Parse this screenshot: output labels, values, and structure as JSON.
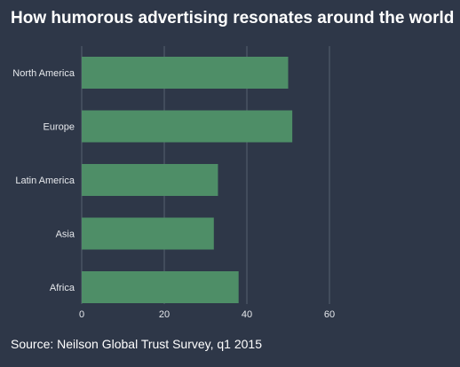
{
  "colors": {
    "background": "#2e3748",
    "bar": "#4e8e67",
    "grid": "#56606f",
    "text": "#ffffff"
  },
  "chart_data": {
    "type": "bar",
    "orientation": "horizontal",
    "title": "How humorous advertising resonates around the world",
    "source": "Source: Neilson Global Trust Survey, q1 2015",
    "categories": [
      "North America",
      "Europe",
      "Latin America",
      "Asia",
      "Africa"
    ],
    "values": [
      50,
      51,
      33,
      32,
      38
    ],
    "xlim": [
      0,
      60
    ],
    "xticks": [
      "0",
      "20",
      "40",
      "60"
    ],
    "grid": "vertical",
    "legend": "none"
  }
}
